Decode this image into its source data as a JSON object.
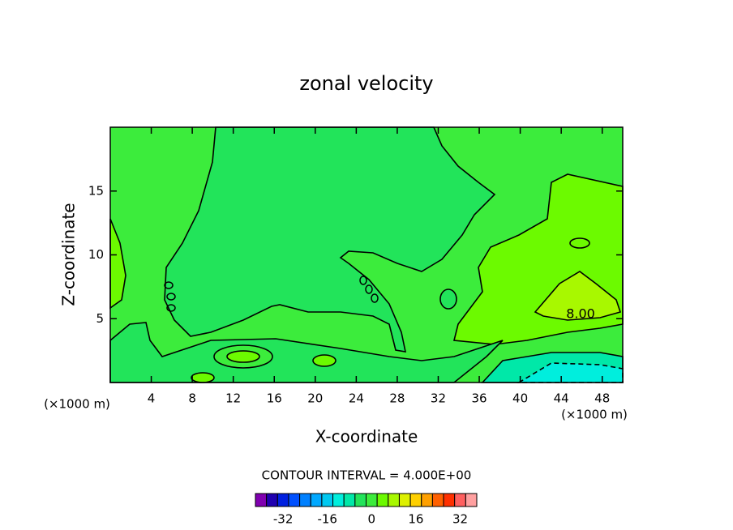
{
  "chart_data": {
    "type": "contour",
    "title": "zonal velocity",
    "x_label": "X-coordinate",
    "y_label": "Z-coordinate",
    "x_unit_left": "(×1000 m)",
    "x_unit_right": "(×1000 m)",
    "xlim": [
      0,
      50
    ],
    "ylim": [
      0,
      20
    ],
    "xticks": [
      4,
      8,
      12,
      16,
      20,
      24,
      28,
      32,
      36,
      40,
      44,
      48
    ],
    "yticks": [
      5,
      10,
      15
    ],
    "contour_interval_label": "CONTOUR INTERVAL = 4.000E+00",
    "contour_label": {
      "value": 8,
      "label": "8.00"
    },
    "levels": [
      -36,
      -32,
      -28,
      -24,
      -20,
      -16,
      -12,
      -8,
      -4,
      0,
      4,
      8,
      12,
      16,
      20,
      24,
      28,
      32,
      36
    ],
    "colors": [
      "#8000b0",
      "#2000b0",
      "#0020e0",
      "#0050ff",
      "#0080ff",
      "#00a8ff",
      "#00c8f0",
      "#00eedd",
      "#00e8a8",
      "#22e45a",
      "#3cec3c",
      "#6cfa00",
      "#a8f800",
      "#ddf000",
      "#ffd000",
      "#ffa000",
      "#ff6000",
      "#ff3000",
      "#ff6060",
      "#ffa0a0"
    ],
    "colorbar_ticks": [
      -32,
      -16,
      0,
      16,
      32
    ]
  }
}
